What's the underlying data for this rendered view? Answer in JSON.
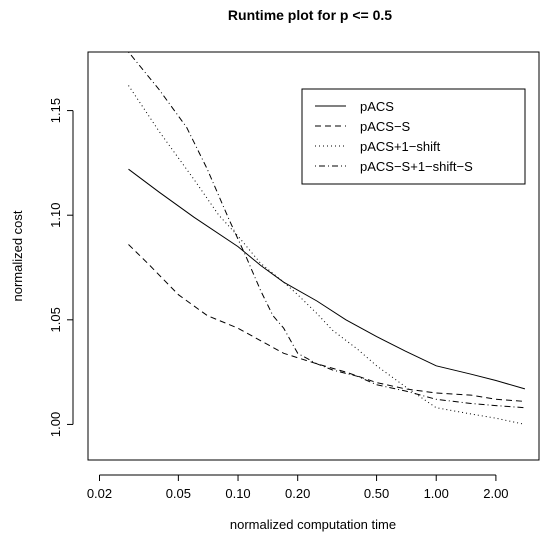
{
  "chart_data": {
    "type": "line",
    "title": "Runtime plot for p <= 0.5",
    "xlabel": "normalized computation time",
    "ylabel": "normalized cost",
    "xscale": "log",
    "xlim": [
      0.0175,
      3.3
    ],
    "ylim": [
      0.983,
      1.178
    ],
    "xticks": [
      0.02,
      0.05,
      0.1,
      0.2,
      0.5,
      1.0,
      2.0
    ],
    "xtick_labels": [
      "0.02",
      "0.05",
      "0.10",
      "0.20",
      "0.50",
      "1.00",
      "2.00"
    ],
    "yticks": [
      1.0,
      1.05,
      1.1,
      1.15
    ],
    "ytick_labels": [
      "1.00",
      "1.05",
      "1.10",
      "1.15"
    ],
    "grid": false,
    "legend_position": "top-right",
    "series": [
      {
        "name": "pACS",
        "dash": "solid",
        "points": [
          [
            0.028,
            1.122
          ],
          [
            0.04,
            1.111
          ],
          [
            0.06,
            1.099
          ],
          [
            0.1,
            1.085
          ],
          [
            0.13,
            1.076
          ],
          [
            0.17,
            1.068
          ],
          [
            0.25,
            1.059
          ],
          [
            0.35,
            1.05
          ],
          [
            0.5,
            1.042
          ],
          [
            0.7,
            1.035
          ],
          [
            1.0,
            1.028
          ],
          [
            1.5,
            1.024
          ],
          [
            2.0,
            1.021
          ],
          [
            2.8,
            1.017
          ]
        ]
      },
      {
        "name": "pACS−S",
        "dash": "dashed",
        "points": [
          [
            0.028,
            1.086
          ],
          [
            0.035,
            1.077
          ],
          [
            0.05,
            1.062
          ],
          [
            0.07,
            1.052
          ],
          [
            0.1,
            1.046
          ],
          [
            0.13,
            1.04
          ],
          [
            0.17,
            1.034
          ],
          [
            0.25,
            1.029
          ],
          [
            0.35,
            1.025
          ],
          [
            0.5,
            1.02
          ],
          [
            0.7,
            1.017
          ],
          [
            1.0,
            1.015
          ],
          [
            1.5,
            1.014
          ],
          [
            2.0,
            1.012
          ],
          [
            2.8,
            1.011
          ]
        ]
      },
      {
        "name": "pACS+1−shift",
        "dash": "dotted",
        "points": [
          [
            0.028,
            1.162
          ],
          [
            0.04,
            1.14
          ],
          [
            0.06,
            1.117
          ],
          [
            0.08,
            1.1
          ],
          [
            0.1,
            1.09
          ],
          [
            0.13,
            1.077
          ],
          [
            0.17,
            1.068
          ],
          [
            0.2,
            1.062
          ],
          [
            0.25,
            1.053
          ],
          [
            0.3,
            1.045
          ],
          [
            0.4,
            1.036
          ],
          [
            0.5,
            1.028
          ],
          [
            0.7,
            1.018
          ],
          [
            1.0,
            1.008
          ],
          [
            1.5,
            1.005
          ],
          [
            2.0,
            1.003
          ],
          [
            2.8,
            1.0
          ]
        ]
      },
      {
        "name": "pACS−S+1−shift−S",
        "dash": "dotdash",
        "points": [
          [
            0.028,
            1.178
          ],
          [
            0.04,
            1.16
          ],
          [
            0.055,
            1.142
          ],
          [
            0.07,
            1.122
          ],
          [
            0.09,
            1.098
          ],
          [
            0.11,
            1.08
          ],
          [
            0.13,
            1.064
          ],
          [
            0.15,
            1.052
          ],
          [
            0.17,
            1.046
          ],
          [
            0.2,
            1.034
          ],
          [
            0.25,
            1.029
          ],
          [
            0.3,
            1.026
          ],
          [
            0.4,
            1.023
          ],
          [
            0.5,
            1.019
          ],
          [
            0.7,
            1.016
          ],
          [
            1.0,
            1.012
          ],
          [
            1.5,
            1.01
          ],
          [
            2.0,
            1.009
          ],
          [
            2.8,
            1.008
          ]
        ]
      }
    ]
  }
}
